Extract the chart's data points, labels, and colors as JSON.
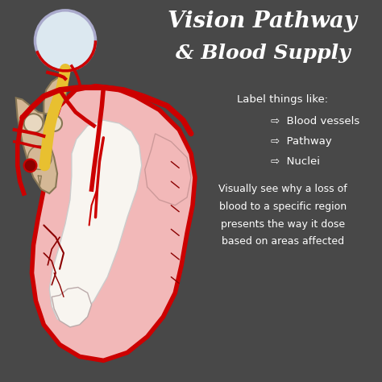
{
  "title_line1": "Vision Pathway",
  "title_line2": "& Blood Supply",
  "background_color": "#484848",
  "label_header": "Label things like:",
  "label_item1": "⇨  Blood vessels",
  "label_item2": "⇨  Pathway",
  "label_item3": "⇨  Nuclei",
  "body_text_lines": [
    "Visually see why a loss of",
    "blood to a specific region",
    "presents the way it dose",
    "based on areas affected"
  ],
  "text_color": "#ffffff",
  "brain_pink": "#f2b8b8",
  "brain_outline": "#cc0000",
  "brain_white": "#f8f5f0",
  "vessel_red": "#cc0000",
  "nerve_yellow": "#e8c030",
  "brainstem_tan": "#d4b896",
  "eye_white": "#dce8f0",
  "dark_red": "#8b0000"
}
